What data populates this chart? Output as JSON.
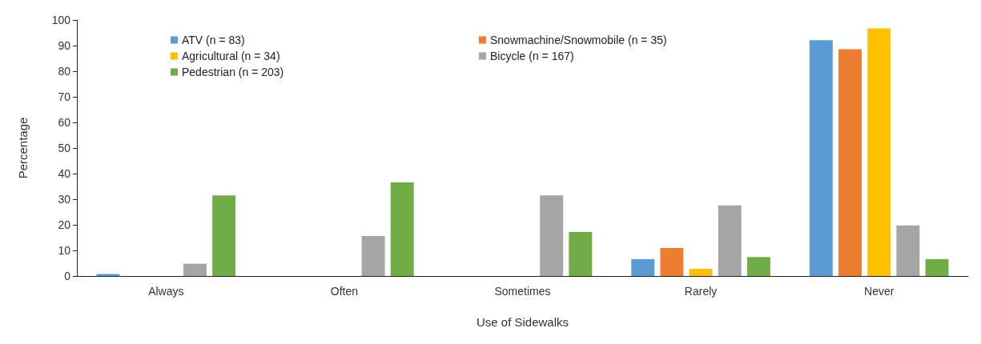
{
  "chart_data": {
    "type": "bar",
    "xlabel": "Use of Sidewalks",
    "ylabel": "Percentage",
    "categories": [
      "Always",
      "Often",
      "Sometimes",
      "Rarely",
      "Never"
    ],
    "series": [
      {
        "name": "ATV (n = 83)",
        "color": "#5b9bd5",
        "values": [
          0.8,
          0,
          0,
          6.6,
          92.1
        ]
      },
      {
        "name": "Snowmachine/Snowmobile (n = 35)",
        "color": "#ed7d31",
        "values": [
          0,
          0,
          0,
          10.9,
          88.6
        ]
      },
      {
        "name": "Agricultural (n = 34)",
        "color": "#ffc000",
        "values": [
          0,
          0,
          0,
          2.8,
          96.7
        ]
      },
      {
        "name": "Bicycle (n = 167)",
        "color": "#a5a5a5",
        "values": [
          4.8,
          15.6,
          31.5,
          27.6,
          19.8
        ]
      },
      {
        "name": "Pedestrian (n = 203)",
        "color": "#70ad47",
        "values": [
          31.5,
          36.6,
          17.2,
          7.4,
          6.6
        ]
      }
    ],
    "ylim": [
      0,
      100
    ],
    "yticks": [
      0,
      10,
      20,
      30,
      40,
      50,
      60,
      70,
      80,
      90,
      100
    ],
    "grid": false,
    "legend": "top"
  }
}
